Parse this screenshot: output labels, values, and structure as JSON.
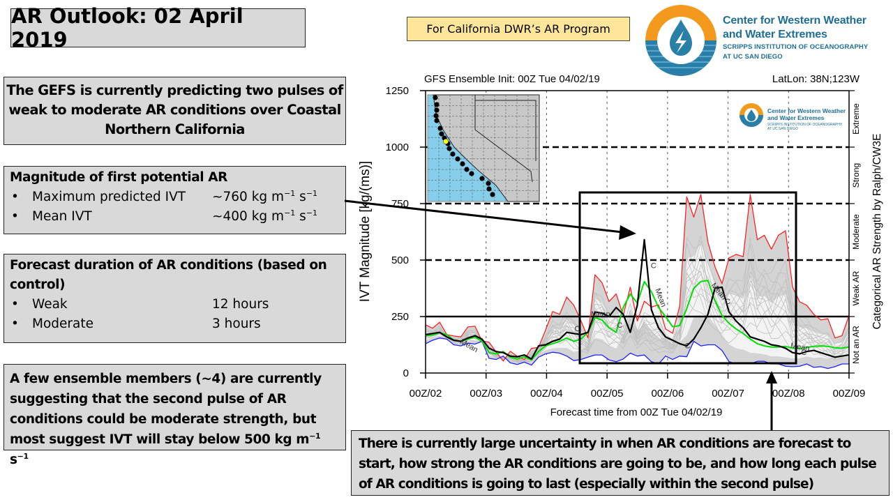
{
  "header": {
    "title": "AR Outlook: 02 April 2019",
    "program_label": "For California DWR’s AR Program",
    "logo": {
      "icon": "cw3e-drop-logo-icon",
      "name_line1": "Center for Western Weather",
      "name_line2": "and Water Extremes",
      "sub_line1": "SCRIPPS INSTITUTION OF OCEANOGRAPHY",
      "sub_line2": "AT UC SAN DIEGO",
      "colors": {
        "orange": "#f39a1e",
        "blue": "#2a7fa8",
        "text": "#1f6f95"
      }
    }
  },
  "summary": {
    "text": "The GEFS is currently predicting two pulses of weak to moderate AR conditions over Coastal Northern California"
  },
  "magnitude": {
    "heading": "Magnitude of first potential AR",
    "items": [
      {
        "label": "Maximum predicted IVT",
        "value": "~760 kg m",
        "exp1": "−1",
        "mid": " s",
        "exp2": "−1"
      },
      {
        "label": "Mean IVT",
        "value": "~400 kg m",
        "exp1": "−1",
        "mid": " s",
        "exp2": "−1"
      }
    ]
  },
  "duration": {
    "heading": "Forecast duration of AR conditions (based on control)",
    "items": [
      {
        "label": "Weak",
        "value": "12 hours"
      },
      {
        "label": "Moderate",
        "value": "3 hours"
      }
    ]
  },
  "ensemble_note": {
    "text": "A few ensemble members (~4) are currently suggesting that the second pulse of AR conditions could be moderate strength, but most suggest IVT will stay below 500 kg m",
    "exp1": "−1",
    "mid": " s",
    "exp2": "−1"
  },
  "uncertainty_note": {
    "text": "There is currently large uncertainty in when AR conditions are forecast to start, how strong the AR conditions are going to be, and how long each pulse of AR conditions is going to last (especially within the second pulse)"
  },
  "chart_data": {
    "type": "line",
    "title_left": "GFS Ensemble Init: 00Z Tue 04/02/19",
    "title_right": "LatLon: 38N;123W",
    "xlabel": "Forecast time from 00Z Tue 04/02/19",
    "ylabel": "IVT Magnitude [kg/(ms)]",
    "right_label": "Categorical AR Strength by Ralph/CW3E",
    "ylim": [
      0,
      1250
    ],
    "yticks": [
      0,
      250,
      500,
      750,
      1000,
      1250
    ],
    "xticks": [
      "00Z/02",
      "00Z/03",
      "00Z/04",
      "00Z/05",
      "00Z/06",
      "00Z/07",
      "00Z/08",
      "00Z/09"
    ],
    "x_step_hours": 6,
    "thresholds": [
      {
        "value": 250,
        "style": "solid"
      },
      {
        "value": 500,
        "style": "dashed"
      },
      {
        "value": 750,
        "style": "dashed"
      },
      {
        "value": 1000,
        "style": "dashed"
      }
    ],
    "categories": [
      {
        "label": "Not an AR",
        "range": [
          0,
          250
        ]
      },
      {
        "label": "Weak AR",
        "range": [
          250,
          500
        ]
      },
      {
        "label": "Moderate",
        "range": [
          500,
          750
        ]
      },
      {
        "label": "Strong",
        "range": [
          750,
          1000
        ]
      },
      {
        "label": "Extreme",
        "range": [
          1000,
          1250
        ]
      }
    ],
    "series": [
      {
        "name": "Max",
        "color": "#ff2020",
        "values": [
          213,
          198,
          225,
          170,
          164,
          160,
          204,
          207,
          142,
          136,
          93,
          53,
          96,
          74,
          60,
          109,
          114,
          190,
          272,
          260,
          336,
          300,
          232,
          155,
          435,
          400,
          316,
          350,
          255,
          380,
          230,
          318,
          292,
          302,
          195,
          176,
          295,
          780,
          690,
          790,
          580,
          470,
          395,
          510,
          525,
          515,
          790,
          590,
          610,
          548,
          610,
          630,
          380,
          315,
          300,
          260,
          235,
          240,
          155,
          165,
          255
        ]
      },
      {
        "name": "Min",
        "color": "#2020ff",
        "values": [
          130,
          145,
          155,
          150,
          125,
          120,
          132,
          128,
          140,
          65,
          60,
          75,
          45,
          38,
          48,
          35,
          70,
          85,
          92,
          88,
          75,
          55,
          60,
          70,
          80,
          80,
          58,
          50,
          62,
          88,
          75,
          80,
          50,
          40,
          75,
          60,
          75,
          72,
          140,
          120,
          125,
          125,
          100,
          50,
          40,
          45,
          40,
          52,
          52,
          40,
          40,
          30,
          28,
          30,
          40,
          25,
          28,
          20,
          28,
          40,
          40
        ]
      },
      {
        "name": "Mean",
        "color": "#00e000",
        "values": [
          165,
          168,
          178,
          170,
          145,
          140,
          150,
          160,
          140,
          90,
          85,
          95,
          70,
          62,
          72,
          58,
          95,
          120,
          130,
          140,
          155,
          140,
          150,
          180,
          245,
          235,
          200,
          180,
          290,
          350,
          310,
          405,
          360,
          290,
          250,
          205,
          210,
          285,
          375,
          405,
          410,
          320,
          255,
          220,
          195,
          175,
          150,
          130,
          120,
          115,
          115,
          118,
          110,
          108,
          113,
          118,
          120,
          118,
          112,
          110,
          115
        ]
      },
      {
        "name": "Control",
        "color": "#000000",
        "values": [
          170,
          175,
          180,
          160,
          145,
          140,
          155,
          165,
          150,
          110,
          95,
          90,
          75,
          72,
          80,
          62,
          120,
          125,
          140,
          150,
          180,
          175,
          170,
          180,
          270,
          265,
          250,
          290,
          260,
          180,
          300,
          590,
          280,
          200,
          160,
          145,
          130,
          120,
          150,
          200,
          260,
          375,
          380,
          270,
          230,
          200,
          160,
          150,
          140,
          125,
          120,
          110,
          90,
          85,
          95,
          100,
          90,
          80,
          70,
          75,
          80
        ]
      }
    ],
    "labels": [
      "Mean",
      "C"
    ],
    "inset_map": {
      "region": "California / US West Coast",
      "highlight_point": "38N;123W",
      "highlight_color": "#ffff00",
      "ocean_color": "#87ceeb",
      "land_color": "#c8c8c8"
    },
    "annotations": [
      {
        "type": "rectangle",
        "description": "highlight box around AR pulses",
        "x_range": [
          "00Z/04 +12h",
          "00Z/08 +3h"
        ],
        "y_range": [
          40,
          800
        ]
      },
      {
        "type": "arrow",
        "from": "Magnitude of first potential AR box",
        "to": "first peak ~00Z/05 18Z"
      },
      {
        "type": "arrow",
        "from": "uncertainty note",
        "to": "chart near 00Z/08"
      }
    ]
  }
}
